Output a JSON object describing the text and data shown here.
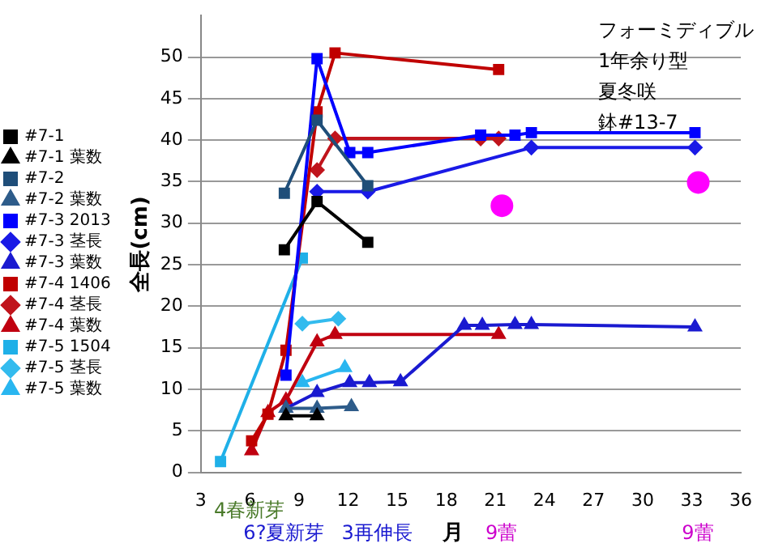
{
  "chart_data": {
    "type": "line",
    "xlabel": "月",
    "ylabel": "全長(cm)",
    "xlim": [
      3,
      36
    ],
    "xticks": [
      3,
      6,
      9,
      12,
      15,
      18,
      21,
      24,
      27,
      30,
      33,
      36
    ],
    "ylim": [
      0,
      55
    ],
    "yticks": [
      0,
      5,
      10,
      15,
      20,
      25,
      30,
      35,
      40,
      45,
      50
    ],
    "grid": "y",
    "legend": "left",
    "annotations": [
      "フォーミディブル",
      "1年余り型",
      "夏冬咲",
      "鉢#13-7",
      "4春新芽",
      "6?夏新芽",
      "3再伸長",
      "9蕾",
      "9蕾"
    ],
    "series": [
      {
        "name": "#7-1",
        "color": "#000000",
        "marker": "square",
        "x": [
          8.1,
          10.1,
          13.2
        ],
        "values": [
          26.8,
          32.6,
          27.7
        ]
      },
      {
        "name": "#7-1 葉数",
        "color": "#000000",
        "marker": "triangle",
        "x": [
          8.2,
          10.1
        ],
        "values": [
          6.8,
          6.8
        ]
      },
      {
        "name": "#7-2",
        "color": "#1f4e79",
        "marker": "square",
        "x": [
          8.1,
          10.1,
          13.2
        ],
        "values": [
          33.6,
          42.4,
          34.5
        ]
      },
      {
        "name": "#7-2 葉数",
        "color": "#2e5c8a",
        "marker": "triangle",
        "x": [
          8.2,
          10.1,
          12.2
        ],
        "values": [
          7.7,
          7.7,
          7.9
        ]
      },
      {
        "name": "#7-3 2013",
        "color": "#0000ff",
        "marker": "square",
        "x": [
          8.2,
          10.1,
          12.1,
          13.2,
          20.1,
          22.2,
          23.2,
          33.2
        ],
        "values": [
          11.7,
          49.8,
          38.5,
          38.5,
          40.6,
          40.6,
          40.9,
          40.9
        ]
      },
      {
        "name": "#7-3 茎長",
        "color": "#1a1ae6",
        "marker": "diamond",
        "x": [
          10.1,
          13.2,
          23.2,
          33.2
        ],
        "values": [
          33.8,
          33.8,
          39.1,
          39.1
        ]
      },
      {
        "name": "#7-3 葉数",
        "color": "#1a1ad0",
        "marker": "triangle",
        "x": [
          8.2,
          10.1,
          12.1,
          13.3,
          15.2,
          19.1,
          20.2,
          22.2,
          23.2,
          33.2
        ],
        "values": [
          7.7,
          9.6,
          10.8,
          10.8,
          10.9,
          17.7,
          17.7,
          17.8,
          17.8,
          17.5
        ]
      },
      {
        "name": "#7-4 1406",
        "color": "#c00000",
        "marker": "square",
        "x": [
          6.1,
          7.1,
          8.2,
          10.1,
          11.2,
          21.2
        ],
        "values": [
          3.8,
          7.0,
          14.7,
          43.4,
          50.5,
          48.5
        ]
      },
      {
        "name": "#7-4 茎長",
        "color": "#c0141c",
        "marker": "diamond",
        "x": [
          10.1,
          11.2,
          20.1,
          21.2
        ],
        "values": [
          36.4,
          40.2,
          40.2,
          40.2
        ]
      },
      {
        "name": "#7-4 葉数",
        "color": "#c00010",
        "marker": "triangle",
        "x": [
          6.1,
          7.1,
          8.2,
          10.1,
          11.2,
          21.2
        ],
        "values": [
          2.6,
          7.2,
          8.7,
          15.7,
          16.6,
          16.6
        ]
      },
      {
        "name": "#7-5 1504",
        "color": "#1fb0e8",
        "marker": "square",
        "x": [
          4.2,
          9.2
        ],
        "values": [
          1.3,
          25.8
        ]
      },
      {
        "name": "#7-5 茎長",
        "color": "#33bbee",
        "marker": "diamond",
        "x": [
          9.2,
          11.4
        ],
        "values": [
          17.9,
          18.5
        ]
      },
      {
        "name": "#7-5 葉数",
        "color": "#29b6f0",
        "marker": "triangle",
        "x": [
          9.2,
          11.8
        ],
        "values": [
          10.8,
          12.6
        ]
      },
      {
        "type": "scatter",
        "color": "#ff00ff",
        "marker": "circle",
        "x": [
          21.4,
          33.4
        ],
        "values": [
          32.1,
          34.9
        ]
      }
    ]
  }
}
